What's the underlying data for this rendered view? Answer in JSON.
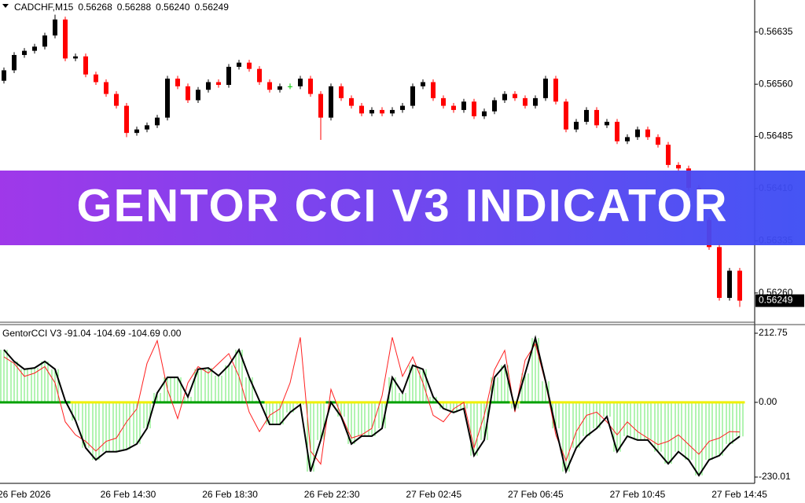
{
  "banner": {
    "title": "GENTOR CCI V3 INDICATOR"
  },
  "chart_data": [
    {
      "type": "candlestick",
      "symbol": "CADCHF,M15",
      "ohlc": [
        0.56268,
        0.56288,
        0.5624,
        0.56249
      ],
      "ohlc_labels": [
        "0.56268",
        "0.56288",
        "0.56240",
        "0.56249"
      ],
      "open": [
        0.56565,
        0.5658,
        0.56602,
        0.56608,
        0.56614,
        0.5663,
        0.56653,
        0.56597,
        0.566,
        0.56574,
        0.56563,
        0.56546,
        0.56529,
        0.5649,
        0.56495,
        0.56501,
        0.56512,
        0.56568,
        0.56557,
        0.56537,
        0.56552,
        0.56563,
        0.56559,
        0.56585,
        0.56591,
        0.56582,
        0.56563,
        0.56552,
        0.56557,
        0.56557,
        0.56568,
        0.56546,
        0.56512,
        0.56557,
        0.5654,
        0.56529,
        0.56518,
        0.56523,
        0.56518,
        0.56523,
        0.56529,
        0.56557,
        0.56563,
        0.5654,
        0.56529,
        0.56523,
        0.56535,
        0.56514,
        0.56521,
        0.56537,
        0.56546,
        0.5654,
        0.56529,
        0.5654,
        0.56568,
        0.56535,
        0.56495,
        0.56506,
        0.56523,
        0.56501,
        0.56506,
        0.56478,
        0.56484,
        0.56495,
        0.56484,
        0.56473,
        0.56444,
        0.56439,
        0.56411,
        0.56365,
        0.56326,
        0.56253,
        0.56292
      ],
      "high": [
        0.56584,
        0.56606,
        0.56612,
        0.56618,
        0.56634,
        0.5666,
        0.56657,
        0.56604,
        0.56604,
        0.56578,
        0.56567,
        0.5655,
        0.56533,
        0.56499,
        0.56505,
        0.56516,
        0.56572,
        0.56572,
        0.56561,
        0.56556,
        0.56567,
        0.56567,
        0.56589,
        0.56595,
        0.56595,
        0.56586,
        0.56567,
        0.56561,
        0.56561,
        0.56572,
        0.56572,
        0.5655,
        0.56561,
        0.56561,
        0.56544,
        0.56533,
        0.56527,
        0.56527,
        0.56527,
        0.56533,
        0.56561,
        0.56567,
        0.56567,
        0.56544,
        0.56533,
        0.56539,
        0.56539,
        0.56525,
        0.56541,
        0.5655,
        0.5655,
        0.56544,
        0.56544,
        0.56572,
        0.56572,
        0.56539,
        0.5651,
        0.56527,
        0.56527,
        0.5651,
        0.5651,
        0.56488,
        0.56499,
        0.56499,
        0.56488,
        0.56477,
        0.56448,
        0.56443,
        0.56415,
        0.56369,
        0.5633,
        0.56296,
        0.56296
      ],
      "low": [
        0.56561,
        0.56576,
        0.56598,
        0.56604,
        0.5661,
        0.56626,
        0.56593,
        0.56593,
        0.5657,
        0.56559,
        0.56542,
        0.56525,
        0.56484,
        0.56486,
        0.56491,
        0.56497,
        0.56508,
        0.56553,
        0.56533,
        0.56533,
        0.56548,
        0.56555,
        0.56555,
        0.56581,
        0.56578,
        0.56559,
        0.56548,
        0.56548,
        0.56553,
        0.56553,
        0.56542,
        0.5648,
        0.56508,
        0.56536,
        0.56525,
        0.56514,
        0.56514,
        0.56514,
        0.56514,
        0.56519,
        0.56525,
        0.56553,
        0.56536,
        0.56525,
        0.56519,
        0.56519,
        0.5651,
        0.5651,
        0.56517,
        0.56533,
        0.56536,
        0.56525,
        0.56525,
        0.56536,
        0.56531,
        0.56491,
        0.56491,
        0.56502,
        0.56497,
        0.56497,
        0.56474,
        0.56474,
        0.5648,
        0.5648,
        0.56469,
        0.5644,
        0.56435,
        0.56407,
        0.56361,
        0.56322,
        0.56249,
        0.56249,
        0.5624
      ],
      "close": [
        0.5658,
        0.56602,
        0.56608,
        0.56614,
        0.5663,
        0.56653,
        0.56597,
        0.566,
        0.56574,
        0.56563,
        0.56546,
        0.56529,
        0.5649,
        0.56495,
        0.56501,
        0.56512,
        0.56568,
        0.56557,
        0.56537,
        0.56552,
        0.56563,
        0.56559,
        0.56585,
        0.56591,
        0.56582,
        0.56563,
        0.56552,
        0.56557,
        0.56557,
        0.56568,
        0.56546,
        0.56512,
        0.56557,
        0.5654,
        0.56529,
        0.56518,
        0.56523,
        0.56518,
        0.56523,
        0.56529,
        0.56557,
        0.56563,
        0.5654,
        0.56529,
        0.56523,
        0.56535,
        0.56514,
        0.56521,
        0.56537,
        0.56546,
        0.5654,
        0.56529,
        0.5654,
        0.56568,
        0.56535,
        0.56495,
        0.56506,
        0.56523,
        0.56501,
        0.56506,
        0.56478,
        0.56484,
        0.56495,
        0.56484,
        0.56473,
        0.56444,
        0.56439,
        0.56411,
        0.56365,
        0.56326,
        0.56253,
        0.56292,
        0.56249
      ],
      "up_color": "#000000",
      "down_color": "#ff0000",
      "doji_color": "#00c800",
      "ylim": [
        0.56218,
        0.56681
      ],
      "yticks": [
        0.56635,
        {
          "value": 0.5656,
          "label": "0.56560"
        },
        0.56485,
        {
          "value": 0.5641,
          "label": "0.56410"
        },
        0.56335,
        {
          "value": 0.5626,
          "label": "0.56260"
        }
      ],
      "x_labels": [
        "26 Feb 2026",
        "26 Feb 14:30",
        "26 Feb 18:30",
        "26 Feb 22:30",
        "27 Feb 02:45",
        "27 Feb 06:45",
        "27 Feb 10:45",
        "27 Feb 14:45"
      ]
    },
    {
      "type": "cci",
      "title": "GentorCCI V3 -91.04 -104.69 -104.69 0.00",
      "histogram": {
        "color": "#66e866",
        "line_color": "#000000",
        "values": [
          162,
          126,
          102,
          106,
          126,
          102,
          5,
          -56,
          -140,
          -177,
          -152,
          -152,
          -145,
          -128,
          -80,
          29,
          77,
          77,
          17,
          102,
          106,
          82,
          114,
          162,
          77,
          5,
          -68,
          -68,
          -31,
          -7,
          -213,
          -116,
          0,
          -44,
          -128,
          -104,
          -104,
          -80,
          77,
          29,
          114,
          102,
          17,
          -19,
          -31,
          -19,
          -164,
          -116,
          77,
          114,
          -19,
          89,
          198,
          65,
          -80,
          -213,
          -140,
          -104,
          -80,
          -44,
          -152,
          -104,
          -116,
          -116,
          -152,
          -189,
          -152,
          -177,
          -225,
          -177,
          -164,
          -128,
          -104.69
        ]
      },
      "signal": {
        "color": "#ff2020",
        "values": [
          140,
          120,
          80,
          90,
          110,
          60,
          -60,
          -100,
          -120,
          -150,
          -120,
          -110,
          -60,
          -20,
          120,
          190,
          40,
          -50,
          60,
          110,
          90,
          120,
          150,
          80,
          -30,
          -90,
          -40,
          -20,
          60,
          200,
          -150,
          -190,
          40,
          -40,
          -110,
          -100,
          -80,
          20,
          200,
          80,
          140,
          60,
          -40,
          -60,
          -20,
          0,
          -140,
          -40,
          100,
          160,
          -30,
          130,
          180,
          60,
          -100,
          -180,
          -90,
          -40,
          -30,
          -60,
          -100,
          -60,
          -90,
          -110,
          -130,
          -120,
          -100,
          -130,
          -160,
          -120,
          -110,
          -90,
          -91.04
        ]
      },
      "zero_colors": [
        "#00a000",
        "#f0f000"
      ],
      "ylim": [
        -249.35,
        239.35
      ],
      "yticks": [
        212.75,
        {
          "value": 0,
          "label": "0.00"
        },
        -230.01
      ]
    }
  ]
}
